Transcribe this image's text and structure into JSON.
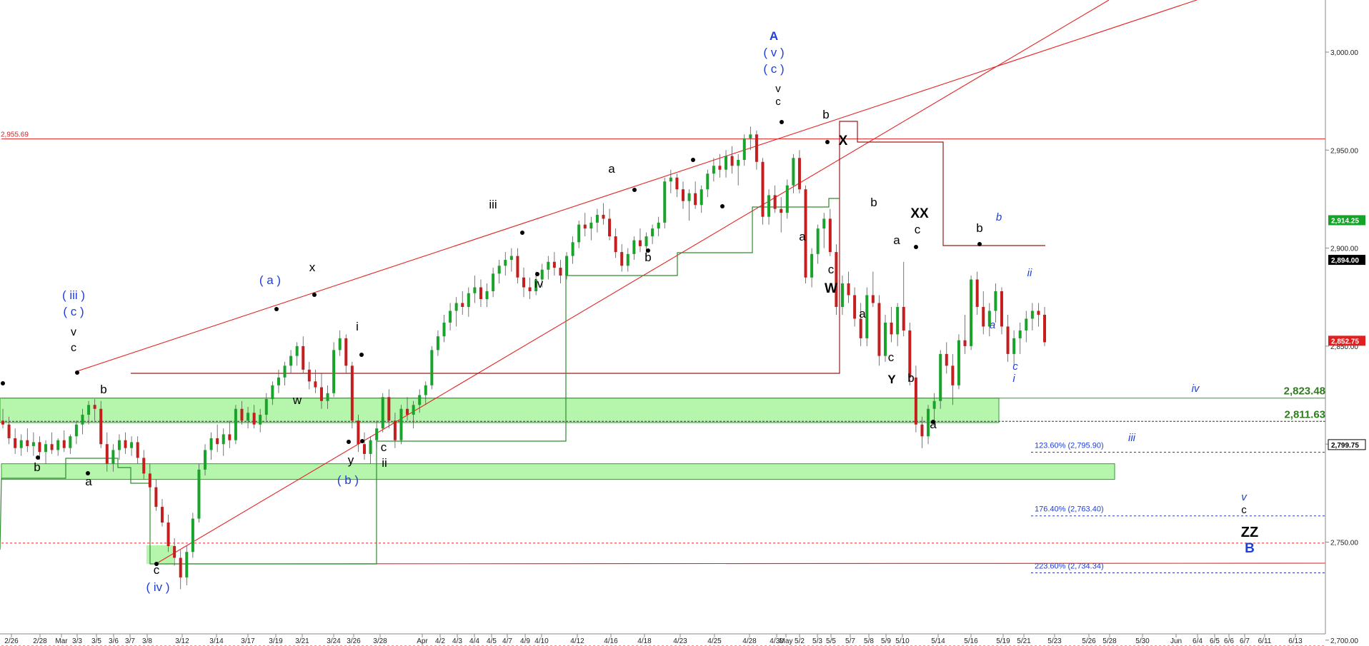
{
  "chart_data": {
    "type": "candlestick",
    "title": "",
    "xlabel": "",
    "ylabel": "",
    "ylim": [
      2695,
      3010
    ],
    "y_ticks": [
      "3,000.00",
      "2,950.00",
      "2,900.00",
      "2,850.00",
      "2,800.00",
      "2,750.00",
      "2,700.00"
    ],
    "y_tick_values": [
      3000,
      2950,
      2900,
      2850,
      2800,
      2750,
      2700
    ],
    "x_ticks": [
      "2/26",
      "2/28",
      "Mar",
      "3/3",
      "3/5",
      "3/6",
      "3/7",
      "3/8",
      "3/12",
      "3/14",
      "3/17",
      "3/19",
      "3/21",
      "3/24",
      "3/26",
      "3/28",
      "Apr",
      "4/2",
      "4/3",
      "4/4",
      "4/5",
      "4/7",
      "4/9",
      "4/10",
      "4/12",
      "4/16",
      "4/18",
      "4/23",
      "4/25",
      "4/28",
      "4/30",
      "May",
      "5/2",
      "5/3",
      "5/5",
      "5/7",
      "5/8",
      "5/9",
      "5/10",
      "5/14",
      "5/16",
      "5/19",
      "5/21",
      "5/23",
      "5/26",
      "5/28",
      "5/30",
      "Jun",
      "6/4",
      "6/5",
      "6/6",
      "6/7",
      "6/11",
      "6/13"
    ],
    "price_labels": [
      {
        "text": "2,914.25",
        "value": 2914.25,
        "color": "#16a32a"
      },
      {
        "text": "2,894.00",
        "value": 2894.0,
        "color": "#000000"
      },
      {
        "text": "2,852.75",
        "value": 2852.75,
        "color": "#e02020"
      },
      {
        "text": "2,799.75",
        "value": 2799.75,
        "color": "#ffffff"
      }
    ],
    "horizontal_lines": [
      {
        "text": "2,955.69",
        "value": 2955.69,
        "color": "#e02020",
        "style": "solid"
      },
      {
        "text": "",
        "value": 2749.5,
        "color": "#e02020",
        "style": "dotted"
      },
      {
        "text": "",
        "value": 2697,
        "color": "#e02020",
        "style": "dotted"
      }
    ],
    "levels": [
      {
        "text": "2,823.48",
        "value": 2823.48,
        "color": "#2e7d1e"
      },
      {
        "text": "2,811.63",
        "value": 2811.63,
        "color": "#2e7d1e"
      }
    ],
    "fib_levels": [
      {
        "text": "123.60% (2,795.90)",
        "value": 2795.9
      },
      {
        "text": "176.40% (2,763.40)",
        "value": 2763.4
      },
      {
        "text": "223.60% (2,734.34)",
        "value": 2734.34
      }
    ],
    "zones": [
      {
        "from": 2811,
        "to": 2823.5
      },
      {
        "from": 2782,
        "to": 2790
      }
    ],
    "wave_labels": [
      {
        "text": "( iii )",
        "color": "#1f3fd6"
      },
      {
        "text": "( c )",
        "color": "#1f3fd6"
      },
      {
        "text": "v",
        "color": "#000000"
      },
      {
        "text": "c",
        "color": "#000000"
      },
      {
        "text": "b",
        "color": "#000000"
      },
      {
        "text": "b",
        "color": "#000000"
      },
      {
        "text": "a",
        "color": "#000000"
      },
      {
        "text": "c",
        "color": "#000000"
      },
      {
        "text": "( iv )",
        "color": "#1f3fd6"
      },
      {
        "text": "( a )",
        "color": "#1f3fd6"
      },
      {
        "text": "x",
        "color": "#000000"
      },
      {
        "text": "w",
        "color": "#000000"
      },
      {
        "text": "y",
        "color": "#000000"
      },
      {
        "text": "( b )",
        "color": "#1f3fd6"
      },
      {
        "text": "i",
        "color": "#000000"
      },
      {
        "text": "c",
        "color": "#000000"
      },
      {
        "text": "ii",
        "color": "#000000"
      },
      {
        "text": "iii",
        "color": "#000000"
      },
      {
        "text": "iv",
        "color": "#000000"
      },
      {
        "text": "a",
        "color": "#000000"
      },
      {
        "text": "b",
        "color": "#000000"
      },
      {
        "text": "A",
        "color": "#1f3fd6"
      },
      {
        "text": "( v )",
        "color": "#1f3fd6"
      },
      {
        "text": "( c )",
        "color": "#1f3fd6"
      },
      {
        "text": "v",
        "color": "#000000"
      },
      {
        "text": "c",
        "color": "#000000"
      },
      {
        "text": "b",
        "color": "#000000"
      },
      {
        "text": "X",
        "color": "#000000"
      },
      {
        "text": "a",
        "color": "#000000"
      },
      {
        "text": "c",
        "color": "#000000"
      },
      {
        "text": "W",
        "color": "#000000"
      },
      {
        "text": "b",
        "color": "#000000"
      },
      {
        "text": "XX",
        "color": "#000000"
      },
      {
        "text": "c",
        "color": "#000000"
      },
      {
        "text": "a",
        "color": "#000000"
      },
      {
        "text": "a",
        "color": "#000000"
      },
      {
        "text": "c",
        "color": "#000000"
      },
      {
        "text": "Y",
        "color": "#000000"
      },
      {
        "text": "b",
        "color": "#000000"
      },
      {
        "text": "a",
        "color": "#000000"
      },
      {
        "text": "b",
        "color": "#000000"
      },
      {
        "text": "b",
        "color": "#1f3fd6"
      },
      {
        "text": "ii",
        "color": "#1f3fd6"
      },
      {
        "text": "a",
        "color": "#1f3fd6"
      },
      {
        "text": "c",
        "color": "#1f3fd6"
      },
      {
        "text": "i",
        "color": "#1f3fd6"
      },
      {
        "text": "iv",
        "color": "#1f3fd6"
      },
      {
        "text": "iii",
        "color": "#1f3fd6"
      },
      {
        "text": "v",
        "color": "#1f3fd6"
      },
      {
        "text": "c",
        "color": "#000000"
      },
      {
        "text": "ZZ",
        "color": "#000000"
      },
      {
        "text": "B",
        "color": "#1f3fd6"
      }
    ],
    "candles_ohlc": [
      [
        2812,
        2818,
        2808,
        2810
      ],
      [
        2810,
        2814,
        2800,
        2803
      ],
      [
        2803,
        2808,
        2795,
        2798
      ],
      [
        2798,
        2805,
        2794,
        2802
      ],
      [
        2802,
        2808,
        2796,
        2799
      ],
      [
        2799,
        2806,
        2794,
        2801
      ],
      [
        2801,
        2804,
        2792,
        2796
      ],
      [
        2796,
        2802,
        2790,
        2800
      ],
      [
        2800,
        2806,
        2795,
        2797
      ],
      [
        2797,
        2803,
        2794,
        2802
      ],
      [
        2802,
        2807,
        2796,
        2798
      ],
      [
        2798,
        2805,
        2795,
        2804
      ],
      [
        2804,
        2812,
        2800,
        2810
      ],
      [
        2810,
        2818,
        2805,
        2815
      ],
      [
        2815,
        2822,
        2810,
        2820
      ],
      [
        2820,
        2823,
        2812,
        2818
      ],
      [
        2818,
        2822,
        2798,
        2800
      ],
      [
        2800,
        2806,
        2786,
        2790
      ],
      [
        2790,
        2800,
        2786,
        2797
      ],
      [
        2797,
        2805,
        2792,
        2802
      ],
      [
        2802,
        2806,
        2795,
        2798
      ],
      [
        2798,
        2804,
        2794,
        2801
      ],
      [
        2801,
        2804,
        2790,
        2793
      ],
      [
        2793,
        2797,
        2782,
        2785
      ],
      [
        2785,
        2790,
        2776,
        2778
      ],
      [
        2778,
        2782,
        2766,
        2768
      ],
      [
        2768,
        2772,
        2758,
        2760
      ],
      [
        2760,
        2764,
        2745,
        2748
      ],
      [
        2748,
        2752,
        2738,
        2742
      ],
      [
        2742,
        2746,
        2726,
        2732
      ],
      [
        2732,
        2748,
        2728,
        2745
      ],
      [
        2745,
        2765,
        2742,
        2762
      ],
      [
        2762,
        2790,
        2760,
        2787
      ],
      [
        2787,
        2800,
        2784,
        2797
      ],
      [
        2797,
        2806,
        2792,
        2803
      ],
      [
        2803,
        2810,
        2796,
        2800
      ],
      [
        2800,
        2808,
        2794,
        2805
      ],
      [
        2805,
        2812,
        2798,
        2802
      ],
      [
        2802,
        2820,
        2800,
        2818
      ],
      [
        2818,
        2822,
        2810,
        2812
      ],
      [
        2812,
        2819,
        2808,
        2816
      ],
      [
        2816,
        2820,
        2808,
        2810
      ],
      [
        2810,
        2818,
        2806,
        2815
      ],
      [
        2815,
        2826,
        2812,
        2823
      ],
      [
        2823,
        2832,
        2820,
        2830
      ],
      [
        2830,
        2838,
        2826,
        2834
      ],
      [
        2834,
        2842,
        2830,
        2840
      ],
      [
        2840,
        2848,
        2836,
        2845
      ],
      [
        2845,
        2852,
        2840,
        2850
      ],
      [
        2850,
        2855,
        2836,
        2838
      ],
      [
        2838,
        2842,
        2828,
        2832
      ],
      [
        2832,
        2838,
        2826,
        2829
      ],
      [
        2829,
        2836,
        2818,
        2822
      ],
      [
        2822,
        2830,
        2818,
        2826
      ],
      [
        2826,
        2852,
        2824,
        2848
      ],
      [
        2848,
        2858,
        2845,
        2854
      ],
      [
        2854,
        2856,
        2836,
        2840
      ],
      [
        2840,
        2842,
        2808,
        2812
      ],
      [
        2812,
        2815,
        2796,
        2800
      ],
      [
        2800,
        2806,
        2792,
        2795
      ],
      [
        2795,
        2804,
        2790,
        2802
      ],
      [
        2802,
        2812,
        2798,
        2808
      ],
      [
        2808,
        2826,
        2806,
        2824
      ],
      [
        2824,
        2828,
        2808,
        2812
      ],
      [
        2812,
        2816,
        2798,
        2802
      ],
      [
        2802,
        2820,
        2800,
        2818
      ],
      [
        2818,
        2824,
        2812,
        2815
      ],
      [
        2815,
        2822,
        2808,
        2820
      ],
      [
        2820,
        2828,
        2816,
        2825
      ],
      [
        2825,
        2832,
        2820,
        2830
      ],
      [
        2830,
        2850,
        2828,
        2848
      ],
      [
        2848,
        2858,
        2845,
        2855
      ],
      [
        2855,
        2866,
        2852,
        2862
      ],
      [
        2862,
        2872,
        2858,
        2868
      ],
      [
        2868,
        2875,
        2860,
        2872
      ],
      [
        2872,
        2878,
        2866,
        2870
      ],
      [
        2870,
        2880,
        2865,
        2877
      ],
      [
        2877,
        2886,
        2872,
        2880
      ],
      [
        2880,
        2884,
        2870,
        2874
      ],
      [
        2874,
        2882,
        2870,
        2878
      ],
      [
        2878,
        2890,
        2875,
        2887
      ],
      [
        2887,
        2894,
        2882,
        2891
      ],
      [
        2891,
        2898,
        2886,
        2894
      ],
      [
        2894,
        2900,
        2888,
        2896
      ],
      [
        2896,
        2900,
        2882,
        2885
      ],
      [
        2885,
        2890,
        2875,
        2880
      ],
      [
        2880,
        2885,
        2874,
        2878
      ],
      [
        2878,
        2888,
        2876,
        2884
      ],
      [
        2884,
        2892,
        2880,
        2889
      ],
      [
        2889,
        2896,
        2884,
        2893
      ],
      [
        2893,
        2898,
        2886,
        2890
      ],
      [
        2890,
        2894,
        2882,
        2886
      ],
      [
        2886,
        2898,
        2884,
        2896
      ],
      [
        2896,
        2906,
        2892,
        2903
      ],
      [
        2903,
        2914,
        2900,
        2912
      ],
      [
        2912,
        2918,
        2906,
        2910
      ],
      [
        2910,
        2916,
        2904,
        2913
      ],
      [
        2913,
        2920,
        2908,
        2917
      ],
      [
        2917,
        2923,
        2912,
        2915
      ],
      [
        2915,
        2920,
        2904,
        2906
      ],
      [
        2906,
        2910,
        2895,
        2898
      ],
      [
        2898,
        2902,
        2888,
        2891
      ],
      [
        2891,
        2900,
        2888,
        2897
      ],
      [
        2897,
        2906,
        2894,
        2904
      ],
      [
        2904,
        2910,
        2898,
        2901
      ],
      [
        2901,
        2908,
        2896,
        2906
      ],
      [
        2906,
        2912,
        2902,
        2910
      ],
      [
        2910,
        2916,
        2906,
        2913
      ],
      [
        2913,
        2936,
        2910,
        2934
      ],
      [
        2934,
        2940,
        2928,
        2936
      ],
      [
        2936,
        2938,
        2926,
        2930
      ],
      [
        2930,
        2934,
        2920,
        2924
      ],
      [
        2924,
        2930,
        2914,
        2928
      ],
      [
        2928,
        2934,
        2920,
        2922
      ],
      [
        2922,
        2932,
        2918,
        2930
      ],
      [
        2930,
        2940,
        2926,
        2938
      ],
      [
        2938,
        2946,
        2934,
        2942
      ],
      [
        2942,
        2948,
        2936,
        2940
      ],
      [
        2940,
        2950,
        2936,
        2947
      ],
      [
        2947,
        2952,
        2938,
        2942
      ],
      [
        2942,
        2948,
        2932,
        2945
      ],
      [
        2945,
        2958,
        2942,
        2956
      ],
      [
        2956,
        2962,
        2950,
        2958
      ],
      [
        2958,
        2960,
        2940,
        2944
      ],
      [
        2944,
        2946,
        2912,
        2916
      ],
      [
        2916,
        2930,
        2912,
        2927
      ],
      [
        2927,
        2932,
        2918,
        2920
      ],
      [
        2920,
        2926,
        2908,
        2918
      ],
      [
        2918,
        2935,
        2915,
        2932
      ],
      [
        2932,
        2948,
        2928,
        2946
      ],
      [
        2946,
        2950,
        2928,
        2930
      ],
      [
        2930,
        2932,
        2882,
        2885
      ],
      [
        2885,
        2900,
        2880,
        2897
      ],
      [
        2897,
        2912,
        2892,
        2910
      ],
      [
        2910,
        2918,
        2900,
        2915
      ],
      [
        2915,
        2920,
        2896,
        2898
      ],
      [
        2898,
        2902,
        2866,
        2870
      ],
      [
        2870,
        2886,
        2866,
        2882
      ],
      [
        2882,
        2888,
        2872,
        2876
      ],
      [
        2876,
        2880,
        2860,
        2864
      ],
      [
        2864,
        2872,
        2850,
        2854
      ],
      [
        2854,
        2880,
        2850,
        2876
      ],
      [
        2876,
        2888,
        2870,
        2872
      ],
      [
        2872,
        2876,
        2840,
        2845
      ],
      [
        2845,
        2866,
        2842,
        2862
      ],
      [
        2862,
        2870,
        2852,
        2856
      ],
      [
        2856,
        2872,
        2850,
        2870
      ],
      [
        2870,
        2893,
        2855,
        2858
      ],
      [
        2858,
        2862,
        2830,
        2834
      ],
      [
        2834,
        2840,
        2806,
        2810
      ],
      [
        2810,
        2814,
        2798,
        2804
      ],
      [
        2804,
        2820,
        2800,
        2818
      ],
      [
        2818,
        2826,
        2812,
        2822
      ],
      [
        2822,
        2848,
        2818,
        2846
      ],
      [
        2846,
        2852,
        2836,
        2840
      ],
      [
        2840,
        2846,
        2820,
        2830
      ],
      [
        2830,
        2856,
        2828,
        2853
      ],
      [
        2853,
        2866,
        2846,
        2850
      ],
      [
        2850,
        2886,
        2848,
        2884
      ],
      [
        2884,
        2888,
        2866,
        2870
      ],
      [
        2870,
        2878,
        2856,
        2860
      ],
      [
        2860,
        2872,
        2855,
        2868
      ],
      [
        2868,
        2882,
        2862,
        2878
      ],
      [
        2878,
        2880,
        2856,
        2860
      ],
      [
        2860,
        2866,
        2842,
        2846
      ],
      [
        2846,
        2858,
        2840,
        2854
      ],
      [
        2854,
        2862,
        2846,
        2858
      ],
      [
        2858,
        2868,
        2852,
        2864
      ],
      [
        2864,
        2872,
        2858,
        2868
      ],
      [
        2868,
        2872,
        2860,
        2866
      ],
      [
        2866,
        2870,
        2850,
        2852
      ]
    ]
  }
}
